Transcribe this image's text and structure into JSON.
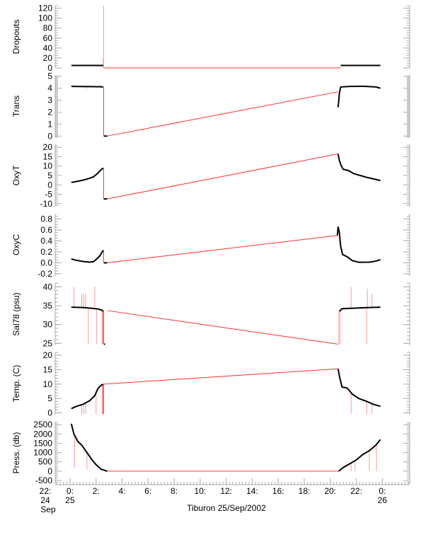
{
  "chart_data": {
    "type": "line",
    "title": "Tiburon 25/Sep/2002",
    "xlabel": "Tiburon 25/Sep/2002",
    "x_units": "hours since 25 Sep 2002 00:00",
    "xlim": [
      -1.14,
      26.1
    ],
    "x_ticks": [
      {
        "h": -2,
        "l1": "22:",
        "l2": "24",
        "l3": "Sep"
      },
      {
        "h": 0,
        "l1": "0:",
        "l2": "25",
        "l3": ""
      },
      {
        "h": 2,
        "l1": "2:",
        "l2": "",
        "l3": ""
      },
      {
        "h": 4,
        "l1": "4:",
        "l2": "",
        "l3": ""
      },
      {
        "h": 6,
        "l1": "6:",
        "l2": "",
        "l3": ""
      },
      {
        "h": 8,
        "l1": "8:",
        "l2": "",
        "l3": ""
      },
      {
        "h": 10,
        "l1": "10:",
        "l2": "",
        "l3": ""
      },
      {
        "h": 12,
        "l1": "12:",
        "l2": "",
        "l3": ""
      },
      {
        "h": 14,
        "l1": "14:",
        "l2": "",
        "l3": ""
      },
      {
        "h": 16,
        "l1": "16:",
        "l2": "",
        "l3": ""
      },
      {
        "h": 18,
        "l1": "18:",
        "l2": "",
        "l3": ""
      },
      {
        "h": 20,
        "l1": "20:",
        "l2": "",
        "l3": ""
      },
      {
        "h": 22,
        "l1": "22:",
        "l2": "",
        "l3": ""
      },
      {
        "h": 24,
        "l1": "0:",
        "l2": "26",
        "l3": ""
      }
    ],
    "colors": {
      "data": "#000000",
      "interpolated": "#ff0000",
      "axis": "#aaaaaa"
    },
    "panels": [
      {
        "name": "dropouts",
        "ylabel": "Dropouts",
        "ylim": [
          0,
          125
        ],
        "ticks": [
          0,
          20,
          40,
          60,
          80,
          100,
          120
        ],
        "minor": 5,
        "black": [
          [
            [
              0.1,
              5
            ],
            [
              2.55,
              5
            ]
          ],
          [
            [
              20.8,
              5
            ],
            [
              23.85,
              5
            ]
          ]
        ],
        "red": [
          [
            [
              2.6,
              0
            ],
            [
              20.8,
              0
            ]
          ]
        ],
        "spikes": [
          [
            2.58,
            0,
            125
          ],
          [
            2.55,
            0,
            20
          ]
        ]
      },
      {
        "name": "trans",
        "ylabel": "Trans",
        "ylim": [
          -0.1,
          5.1
        ],
        "ticks": [
          0,
          1,
          2,
          3,
          4,
          5
        ],
        "minor": 0.1,
        "black": [
          [
            [
              0.1,
              4.15
            ],
            [
              1.5,
              4.13
            ],
            [
              2.4,
              4.12
            ],
            [
              2.55,
              4.1
            ]
          ],
          [
            [
              2.6,
              0
            ],
            [
              2.85,
              0
            ]
          ],
          [
            [
              20.6,
              2.4
            ],
            [
              20.65,
              2.9
            ],
            [
              20.7,
              3.6
            ],
            [
              20.8,
              4.1
            ],
            [
              21.5,
              4.15
            ],
            [
              22.5,
              4.16
            ],
            [
              23.5,
              4.1
            ],
            [
              23.85,
              4.0
            ]
          ]
        ],
        "red": [
          [
            [
              2.58,
              4.1
            ],
            [
              2.58,
              0
            ]
          ],
          [
            [
              2.85,
              0
            ],
            [
              20.6,
              3.7
            ]
          ]
        ],
        "spikes": [
          [
            1.3,
            3.95,
            4.1
          ]
        ]
      },
      {
        "name": "oxyt",
        "ylabel": "OxyT",
        "ylim": [
          -11.6,
          21.6
        ],
        "ticks": [
          -10,
          -5,
          0,
          5,
          10,
          15,
          20
        ],
        "minor": 1,
        "black": [
          [
            [
              0.1,
              1.3
            ],
            [
              0.5,
              1.8
            ],
            [
              1,
              2.5
            ],
            [
              1.5,
              3.5
            ],
            [
              1.8,
              4.3
            ],
            [
              2.1,
              6
            ],
            [
              2.35,
              7.8
            ],
            [
              2.55,
              9
            ]
          ],
          [
            [
              2.6,
              -7.5
            ],
            [
              2.85,
              -7.5
            ]
          ],
          [
            [
              20.6,
              16.5
            ],
            [
              20.7,
              13
            ],
            [
              20.85,
              10
            ],
            [
              21,
              8.3
            ],
            [
              21.4,
              7.6
            ],
            [
              21.8,
              6
            ],
            [
              22.3,
              5
            ],
            [
              22.8,
              4
            ],
            [
              23.3,
              3.2
            ],
            [
              23.85,
              2.3
            ]
          ]
        ],
        "red": [
          [
            [
              2.58,
              9
            ],
            [
              2.58,
              -7.5
            ]
          ],
          [
            [
              2.85,
              -7.5
            ],
            [
              20.6,
              16.5
            ]
          ]
        ],
        "spikes": []
      },
      {
        "name": "oxyc",
        "ylabel": "OxyC",
        "ylim": [
          -0.24,
          0.896
        ],
        "ticks": [
          -0.2,
          0.0,
          0.2,
          0.4,
          0.6,
          0.8
        ],
        "tick_fmt": 1,
        "minor": 0.05,
        "black": [
          [
            [
              0.1,
              0.07
            ],
            [
              0.5,
              0.045
            ],
            [
              1,
              0.025
            ],
            [
              1.5,
              0.012
            ],
            [
              1.8,
              0.02
            ],
            [
              2.05,
              0.07
            ],
            [
              2.3,
              0.13
            ],
            [
              2.55,
              0.23
            ]
          ],
          [
            [
              2.6,
              0
            ],
            [
              2.85,
              0
            ]
          ],
          [
            [
              20.55,
              0.5
            ],
            [
              20.6,
              0.66
            ],
            [
              20.7,
              0.55
            ],
            [
              20.8,
              0.3
            ],
            [
              20.95,
              0.15
            ],
            [
              21.3,
              0.11
            ],
            [
              21.7,
              0.04
            ],
            [
              22.2,
              0.01
            ],
            [
              23,
              0.012
            ],
            [
              23.5,
              0.03
            ],
            [
              23.85,
              0.06
            ]
          ]
        ],
        "red": [
          [
            [
              2.58,
              0.23
            ],
            [
              2.58,
              0
            ]
          ],
          [
            [
              2.85,
              0
            ],
            [
              20.6,
              0.5
            ]
          ]
        ],
        "spikes": []
      },
      {
        "name": "sal78",
        "ylabel": "Sal78 (psu)",
        "ylim": [
          24.5,
          41
        ],
        "ticks": [
          25,
          30,
          35,
          40
        ],
        "minor": 1,
        "black": [
          [
            [
              0.1,
              34.6
            ],
            [
              1,
              34.5
            ],
            [
              1.7,
              34.3
            ],
            [
              2.2,
              34.1
            ],
            [
              2.45,
              33.8
            ],
            [
              2.55,
              33.5
            ]
          ],
          [
            [
              2.6,
              24.8
            ],
            [
              2.7,
              24.8
            ]
          ],
          [
            [
              20.7,
              33.5
            ],
            [
              20.9,
              34.2
            ],
            [
              21.5,
              34.3
            ],
            [
              22.2,
              34.4
            ],
            [
              23,
              34.5
            ],
            [
              23.85,
              34.6
            ]
          ]
        ],
        "red": [
          [
            [
              2.58,
              33.6
            ],
            [
              2.58,
              24.8
            ]
          ],
          [
            [
              2.5,
              33.6
            ],
            [
              2.5,
              24.8
            ]
          ],
          [
            [
              2.85,
              33.7
            ],
            [
              20.6,
              24.8
            ]
          ]
        ],
        "spikes": [
          [
            0.3,
            34.6,
            40
          ],
          [
            0.9,
            34.5,
            38.2
          ],
          [
            1.05,
            34.5,
            38.2
          ],
          [
            1.2,
            34.5,
            38
          ],
          [
            1.4,
            34.4,
            24.8
          ],
          [
            1.9,
            34.2,
            40
          ],
          [
            2.05,
            34.1,
            24.8
          ],
          [
            20.65,
            33.5,
            24.8
          ],
          [
            20.75,
            33.5,
            24.8
          ],
          [
            21.6,
            34.3,
            40
          ],
          [
            22.8,
            34.4,
            24.8
          ],
          [
            22.85,
            34.4,
            39.5
          ],
          [
            23.2,
            34.5,
            38
          ]
        ]
      },
      {
        "name": "temp",
        "ylabel": "Temp. (C)",
        "ylim": [
          -0.6,
          21
        ],
        "ticks": [
          0,
          5,
          10,
          15,
          20
        ],
        "minor": 1,
        "black": [
          [
            [
              0.1,
              1.5
            ],
            [
              0.5,
              2.3
            ],
            [
              1,
              3
            ],
            [
              1.5,
              4.2
            ],
            [
              1.9,
              6
            ],
            [
              2.15,
              8.5
            ],
            [
              2.4,
              9.6
            ],
            [
              2.55,
              10
            ]
          ],
          [
            [
              20.6,
              15.3
            ],
            [
              20.7,
              12.8
            ],
            [
              20.9,
              9
            ],
            [
              21.3,
              8.6
            ],
            [
              21.7,
              6.5
            ],
            [
              22.2,
              5
            ],
            [
              22.8,
              4
            ],
            [
              23.3,
              3
            ],
            [
              23.85,
              2.3
            ]
          ]
        ],
        "red": [
          [
            [
              2.58,
              10
            ],
            [
              2.58,
              -0.4
            ]
          ],
          [
            [
              2.5,
              10
            ],
            [
              2.5,
              -0.4
            ]
          ],
          [
            [
              2.6,
              10
            ],
            [
              20.6,
              15.3
            ]
          ]
        ],
        "spikes": [
          [
            0.9,
            2.8,
            -0.4
          ],
          [
            1.05,
            3,
            -0.4
          ],
          [
            1.2,
            3.2,
            -0.4
          ],
          [
            2.0,
            6.3,
            -0.4
          ],
          [
            21.6,
            7,
            -0.4
          ],
          [
            22.8,
            4,
            -0.4
          ],
          [
            23.2,
            3.5,
            -0.4
          ]
        ]
      },
      {
        "name": "press",
        "ylabel": "Press. (db)",
        "ylim": [
          -690,
          2660
        ],
        "ticks": [
          -500,
          0,
          500,
          1000,
          1500,
          2000,
          2500
        ],
        "minor": 100,
        "black": [
          [
            [
              0.1,
              2550
            ],
            [
              0.3,
              2000
            ],
            [
              0.6,
              1600
            ],
            [
              0.9,
              1400
            ],
            [
              1.3,
              1000
            ],
            [
              1.7,
              600
            ],
            [
              2,
              350
            ],
            [
              2.4,
              100
            ],
            [
              2.6,
              60
            ],
            [
              2.85,
              0
            ]
          ],
          [
            [
              20.65,
              0
            ],
            [
              21,
              200
            ],
            [
              21.5,
              400
            ],
            [
              22,
              600
            ],
            [
              22.5,
              900
            ],
            [
              23,
              1100
            ],
            [
              23.5,
              1400
            ],
            [
              23.85,
              1700
            ]
          ]
        ],
        "red": [
          [
            [
              2.85,
              0
            ],
            [
              20.65,
              0
            ]
          ]
        ],
        "spikes": [
          [
            0.35,
            1900,
            200
          ],
          [
            1.3,
            1000,
            100
          ],
          [
            21.6,
            420,
            0
          ],
          [
            21.9,
            480,
            0
          ],
          [
            23,
            1100,
            0
          ],
          [
            23.55,
            1400,
            0
          ]
        ]
      }
    ]
  }
}
